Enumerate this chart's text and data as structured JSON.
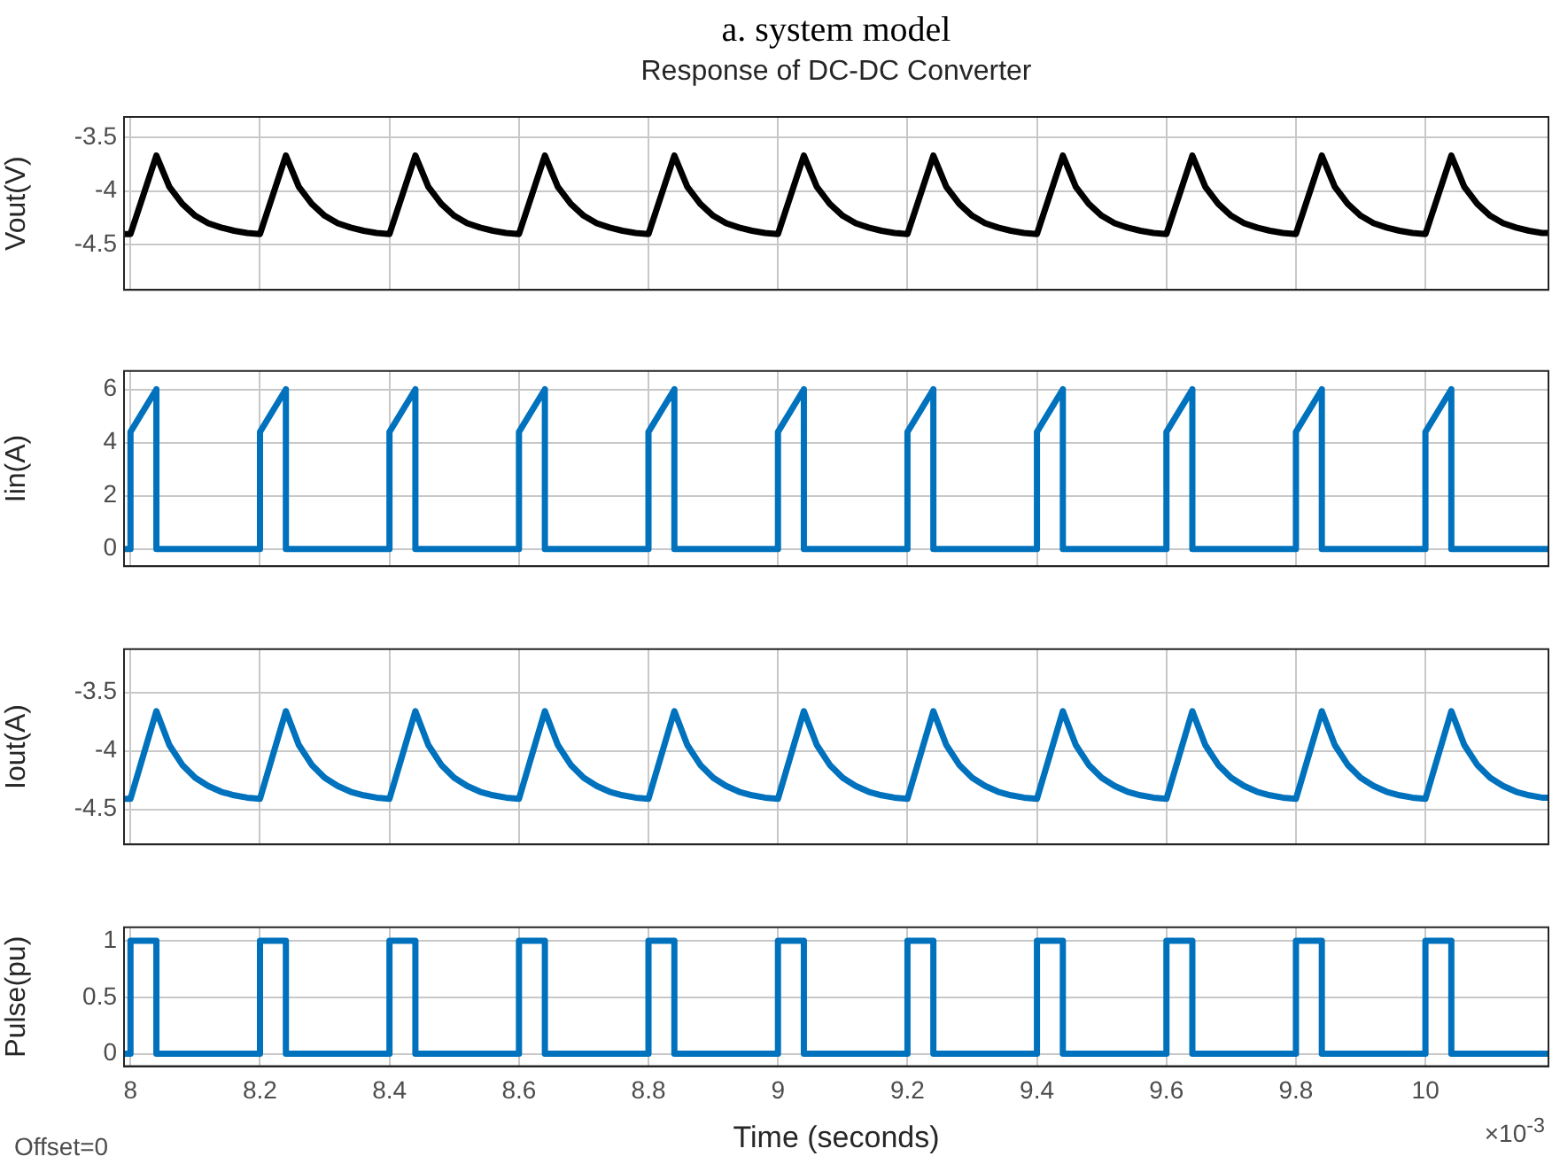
{
  "chart_data": [
    {
      "type": "line",
      "title": "a. system model",
      "subtitle": "Response of DC-DC Converter",
      "ylabel": "Vout(V)",
      "tick_labels": "y",
      "grid": true,
      "marker": "none",
      "line_style": "solid",
      "xlim": [
        7.99,
        10.19
      ],
      "xticks": [
        8,
        8.2,
        8.4,
        8.6,
        8.8,
        9,
        9.2,
        9.4,
        9.6,
        9.8,
        10
      ],
      "ylim": [
        -4.92,
        -3.31
      ],
      "yticks": [
        -4.5,
        -4,
        -3.5
      ],
      "x": [
        7.99,
        8,
        8.04,
        8.06,
        8.08,
        8.1,
        8.12,
        8.14,
        8.16,
        8.18,
        8.2,
        8.24,
        8.26,
        8.28,
        8.3,
        8.32,
        8.34,
        8.36,
        8.38,
        8.4,
        8.44,
        8.46,
        8.48,
        8.5,
        8.52,
        8.54,
        8.56,
        8.58,
        8.6,
        8.64,
        8.66,
        8.68,
        8.7,
        8.72,
        8.74,
        8.76,
        8.78,
        8.8,
        8.84,
        8.86,
        8.88,
        8.9,
        8.92,
        8.94,
        8.96,
        8.98,
        9,
        9.04,
        9.06,
        9.08,
        9.1,
        9.12,
        9.14,
        9.16,
        9.18,
        9.2,
        9.24,
        9.26,
        9.28,
        9.3,
        9.32,
        9.34,
        9.36,
        9.38,
        9.4,
        9.44,
        9.46,
        9.48,
        9.5,
        9.52,
        9.54,
        9.56,
        9.58,
        9.6,
        9.64,
        9.66,
        9.68,
        9.7,
        9.72,
        9.74,
        9.76,
        9.78,
        9.8,
        9.84,
        9.86,
        9.88,
        9.9,
        9.92,
        9.94,
        9.96,
        9.98,
        10,
        10.04,
        10.06,
        10.08,
        10.1,
        10.12,
        10.14,
        10.16,
        10.18,
        10.19
      ],
      "series": [
        {
          "color": "#000000",
          "values": [
            -4.4,
            -4.4,
            -3.67,
            -3.96,
            -4.12,
            -4.23,
            -4.3,
            -4.34,
            -4.37,
            -4.39,
            -4.4,
            -3.67,
            -3.96,
            -4.12,
            -4.23,
            -4.3,
            -4.34,
            -4.37,
            -4.39,
            -4.4,
            -3.67,
            -3.96,
            -4.12,
            -4.23,
            -4.3,
            -4.34,
            -4.37,
            -4.39,
            -4.4,
            -3.67,
            -3.96,
            -4.12,
            -4.23,
            -4.3,
            -4.34,
            -4.37,
            -4.39,
            -4.4,
            -3.67,
            -3.96,
            -4.12,
            -4.23,
            -4.3,
            -4.34,
            -4.37,
            -4.39,
            -4.4,
            -3.67,
            -3.96,
            -4.12,
            -4.23,
            -4.3,
            -4.34,
            -4.37,
            -4.39,
            -4.4,
            -3.67,
            -3.96,
            -4.12,
            -4.23,
            -4.3,
            -4.34,
            -4.37,
            -4.39,
            -4.4,
            -3.67,
            -3.96,
            -4.12,
            -4.23,
            -4.3,
            -4.34,
            -4.37,
            -4.39,
            -4.4,
            -3.67,
            -3.96,
            -4.12,
            -4.23,
            -4.3,
            -4.34,
            -4.37,
            -4.39,
            -4.4,
            -3.67,
            -3.96,
            -4.12,
            -4.23,
            -4.3,
            -4.34,
            -4.37,
            -4.39,
            -4.4,
            -3.67,
            -3.96,
            -4.12,
            -4.23,
            -4.3,
            -4.34,
            -4.37,
            -4.39,
            -4.39
          ]
        }
      ]
    },
    {
      "type": "line",
      "ylabel": "Iin(A)",
      "tick_labels": "y",
      "grid": true,
      "marker": "none",
      "line_style": "solid",
      "xlim": [
        7.99,
        10.19
      ],
      "xticks": [
        8,
        8.2,
        8.4,
        8.6,
        8.8,
        9,
        9.2,
        9.4,
        9.6,
        9.8,
        10
      ],
      "ylim": [
        -0.65,
        6.69
      ],
      "yticks": [
        0,
        2,
        4,
        6
      ],
      "x": [
        7.99,
        8,
        8,
        8.04,
        8.04,
        8.2,
        8.2,
        8.24,
        8.24,
        8.4,
        8.4,
        8.44,
        8.44,
        8.6,
        8.6,
        8.64,
        8.64,
        8.8,
        8.8,
        8.84,
        8.84,
        9,
        9,
        9.04,
        9.04,
        9.2,
        9.2,
        9.24,
        9.24,
        9.4,
        9.4,
        9.44,
        9.44,
        9.6,
        9.6,
        9.64,
        9.64,
        9.8,
        9.8,
        9.84,
        9.84,
        10,
        10,
        10.04,
        10.04,
        10.19
      ],
      "series": [
        {
          "color": "#0072bd",
          "values": [
            0,
            0,
            4.4,
            6,
            0,
            0,
            4.4,
            6,
            0,
            0,
            4.4,
            6,
            0,
            0,
            4.4,
            6,
            0,
            0,
            4.4,
            6,
            0,
            0,
            4.4,
            6,
            0,
            0,
            4.4,
            6,
            0,
            0,
            4.4,
            6,
            0,
            0,
            4.4,
            6,
            0,
            0,
            4.4,
            6,
            0,
            0,
            4.4,
            6,
            0,
            0
          ]
        }
      ]
    },
    {
      "type": "line",
      "ylabel": "Iout(A)",
      "tick_labels": "y",
      "grid": true,
      "marker": "none",
      "line_style": "solid",
      "xlim": [
        7.99,
        10.19
      ],
      "xticks": [
        8,
        8.2,
        8.4,
        8.6,
        8.8,
        9,
        9.2,
        9.4,
        9.6,
        9.8,
        10
      ],
      "ylim": [
        -4.8,
        -3.13
      ],
      "yticks": [
        -4.5,
        -4,
        -3.5
      ],
      "x": [
        7.99,
        8,
        8.04,
        8.06,
        8.08,
        8.1,
        8.12,
        8.14,
        8.16,
        8.18,
        8.2,
        8.24,
        8.26,
        8.28,
        8.3,
        8.32,
        8.34,
        8.36,
        8.38,
        8.4,
        8.44,
        8.46,
        8.48,
        8.5,
        8.52,
        8.54,
        8.56,
        8.58,
        8.6,
        8.64,
        8.66,
        8.68,
        8.7,
        8.72,
        8.74,
        8.76,
        8.78,
        8.8,
        8.84,
        8.86,
        8.88,
        8.9,
        8.92,
        8.94,
        8.96,
        8.98,
        9,
        9.04,
        9.06,
        9.08,
        9.1,
        9.12,
        9.14,
        9.16,
        9.18,
        9.2,
        9.24,
        9.26,
        9.28,
        9.3,
        9.32,
        9.34,
        9.36,
        9.38,
        9.4,
        9.44,
        9.46,
        9.48,
        9.5,
        9.52,
        9.54,
        9.56,
        9.58,
        9.6,
        9.64,
        9.66,
        9.68,
        9.7,
        9.72,
        9.74,
        9.76,
        9.78,
        9.8,
        9.84,
        9.86,
        9.88,
        9.9,
        9.92,
        9.94,
        9.96,
        9.98,
        10,
        10.04,
        10.06,
        10.08,
        10.1,
        10.12,
        10.14,
        10.16,
        10.18,
        10.19
      ],
      "series": [
        {
          "color": "#0072bd",
          "values": [
            -4.41,
            -4.41,
            -3.66,
            -3.95,
            -4.12,
            -4.23,
            -4.3,
            -4.35,
            -4.38,
            -4.4,
            -4.41,
            -3.66,
            -3.95,
            -4.12,
            -4.23,
            -4.3,
            -4.35,
            -4.38,
            -4.4,
            -4.41,
            -3.66,
            -3.95,
            -4.12,
            -4.23,
            -4.3,
            -4.35,
            -4.38,
            -4.4,
            -4.41,
            -3.66,
            -3.95,
            -4.12,
            -4.23,
            -4.3,
            -4.35,
            -4.38,
            -4.4,
            -4.41,
            -3.66,
            -3.95,
            -4.12,
            -4.23,
            -4.3,
            -4.35,
            -4.38,
            -4.4,
            -4.41,
            -3.66,
            -3.95,
            -4.12,
            -4.23,
            -4.3,
            -4.35,
            -4.38,
            -4.4,
            -4.41,
            -3.66,
            -3.95,
            -4.12,
            -4.23,
            -4.3,
            -4.35,
            -4.38,
            -4.4,
            -4.41,
            -3.66,
            -3.95,
            -4.12,
            -4.23,
            -4.3,
            -4.35,
            -4.38,
            -4.4,
            -4.41,
            -3.66,
            -3.95,
            -4.12,
            -4.23,
            -4.3,
            -4.35,
            -4.38,
            -4.4,
            -4.41,
            -3.66,
            -3.95,
            -4.12,
            -4.23,
            -4.3,
            -4.35,
            -4.38,
            -4.4,
            -4.41,
            -3.66,
            -3.95,
            -4.12,
            -4.23,
            -4.3,
            -4.35,
            -4.38,
            -4.4,
            -4.4
          ]
        }
      ]
    },
    {
      "type": "line",
      "ylabel": "Pulse(pu)",
      "xlabel": "Time (seconds)",
      "grid": true,
      "marker": "none",
      "line_style": "solid",
      "annotations": [
        "Offset=0",
        "×10$^{-3}$"
      ],
      "xlim": [
        7.99,
        10.19
      ],
      "xticks": [
        8,
        8.2,
        8.4,
        8.6,
        8.8,
        9,
        9.2,
        9.4,
        9.6,
        9.8,
        10
      ],
      "ylim": [
        -0.11,
        1.12
      ],
      "yticks": [
        0,
        0.5,
        1
      ],
      "x": [
        7.99,
        8,
        8,
        8.04,
        8.04,
        8.2,
        8.2,
        8.24,
        8.24,
        8.4,
        8.4,
        8.44,
        8.44,
        8.6,
        8.6,
        8.64,
        8.64,
        8.8,
        8.8,
        8.84,
        8.84,
        9,
        9,
        9.04,
        9.04,
        9.2,
        9.2,
        9.24,
        9.24,
        9.4,
        9.4,
        9.44,
        9.44,
        9.6,
        9.6,
        9.64,
        9.64,
        9.8,
        9.8,
        9.84,
        9.84,
        10,
        10,
        10.04,
        10.04,
        10.19
      ],
      "series": [
        {
          "color": "#0072bd",
          "values": [
            0,
            0,
            1,
            1,
            0,
            0,
            1,
            1,
            0,
            0,
            1,
            1,
            0,
            0,
            1,
            1,
            0,
            0,
            1,
            1,
            0,
            0,
            1,
            1,
            0,
            0,
            1,
            1,
            0,
            0,
            1,
            1,
            0,
            0,
            1,
            1,
            0,
            0,
            1,
            1,
            0,
            0,
            1,
            1,
            0,
            0
          ]
        }
      ]
    }
  ]
}
